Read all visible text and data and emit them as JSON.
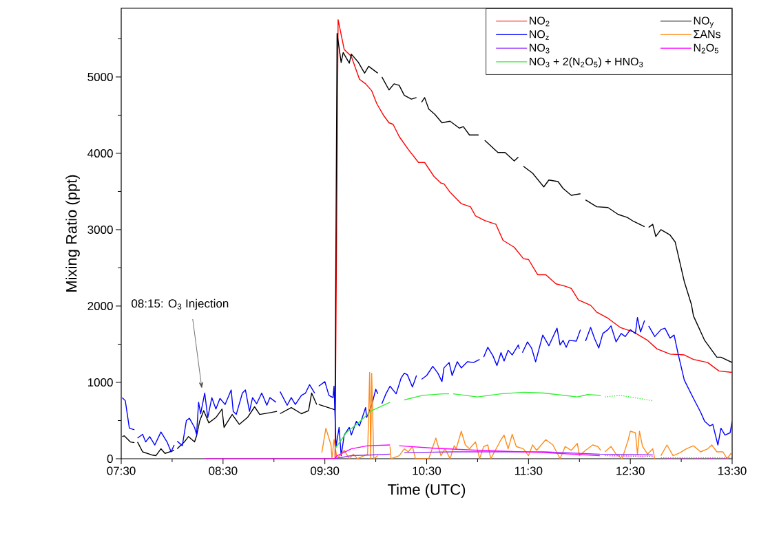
{
  "chart_data": {
    "type": "line",
    "xlabel": "Time (UTC)",
    "ylabel": "Mixing Ratio (ppt)",
    "xlim": [
      7.5,
      13.5
    ],
    "ylim": [
      0,
      5900
    ],
    "xticks": [
      {
        "value": 7.5,
        "label": "07:30"
      },
      {
        "value": 8,
        "label": null
      },
      {
        "value": 8.5,
        "label": "08:30"
      },
      {
        "value": 9,
        "label": null
      },
      {
        "value": 9.5,
        "label": "09:30"
      },
      {
        "value": 10,
        "label": null
      },
      {
        "value": 10.5,
        "label": "10:30"
      },
      {
        "value": 11,
        "label": null
      },
      {
        "value": 11.5,
        "label": "11:30"
      },
      {
        "value": 12,
        "label": null
      },
      {
        "value": 12.5,
        "label": "12:30"
      },
      {
        "value": 13,
        "label": null
      },
      {
        "value": 13.5,
        "label": "13:30"
      }
    ],
    "yticks": [
      0,
      {
        "value": 500,
        "label": null
      },
      1000,
      {
        "value": 1500,
        "label": null
      },
      2000,
      {
        "value": 2500,
        "label": null
      },
      3000,
      {
        "value": 3500,
        "label": null
      },
      4000,
      {
        "value": 4500,
        "label": null
      },
      5000,
      {
        "value": 5500,
        "label": null
      }
    ],
    "legend": "top right",
    "line_style": "solid",
    "annotations": [
      "08:15: O$_{3}$ Injection"
    ],
    "series": [
      {
        "name": "NO$_{2}$",
        "color": "#ff0000",
        "x": [
          9.6,
          9.63,
          9.69,
          9.76,
          9.84,
          9.9,
          9.96,
          10.01,
          10.08,
          10.13,
          10.17,
          10.23,
          10.32,
          10.42,
          10.48,
          10.57,
          10.64,
          10.67,
          10.73,
          10.84,
          10.93,
          10.98,
          11.07,
          11.18,
          11.25,
          11.36,
          11.45,
          11.5,
          11.59,
          11.67,
          11.77,
          11.86,
          11.92,
          11.99,
          12.11,
          12.17,
          12.28,
          12.4,
          12.53,
          12.67,
          12.76,
          12.89,
          13.03,
          13.12,
          13.26,
          13.37,
          13.5
        ],
        "values": [
          0,
          5750,
          5360,
          5270,
          4970,
          4910,
          4820,
          4650,
          4490,
          4400,
          4380,
          4220,
          4050,
          3880,
          3880,
          3700,
          3610,
          3600,
          3490,
          3340,
          3300,
          3180,
          3120,
          3070,
          2860,
          2770,
          2620,
          2610,
          2410,
          2410,
          2290,
          2260,
          2230,
          2080,
          2010,
          1920,
          1840,
          1720,
          1660,
          1550,
          1440,
          1370,
          1360,
          1300,
          1260,
          1150,
          1130
        ]
      },
      {
        "name": "NO$_{y}$",
        "color": "#000000",
        "x": [
          7.51,
          7.53,
          7.59,
          7.63,
          7.645,
          7.66,
          7.71,
          7.8,
          7.84,
          7.89,
          7.93,
          8.02,
          8.035,
          8.05,
          8.12,
          8.16,
          8.22,
          8.24,
          8.27,
          8.31,
          8.36,
          8.43,
          8.49,
          8.51,
          8.59,
          8.66,
          8.74,
          8.81,
          8.86,
          8.95,
          9.03,
          9.045,
          9.06,
          9.17,
          9.27,
          9.34,
          9.37,
          9.42,
          9.43,
          9.44,
          9.58,
          9.6,
          9.62,
          9.66,
          9.68,
          9.74,
          9.76,
          9.83,
          9.89,
          9.93,
          10.02,
          10.04,
          10.06,
          10.13,
          10.18,
          10.23,
          10.28,
          10.35,
          10.4,
          10.425,
          10.45,
          10.48,
          10.52,
          10.58,
          10.65,
          10.73,
          10.82,
          10.86,
          10.92,
          11.01,
          11.04,
          11.07,
          11.2,
          11.27,
          11.36,
          11.4,
          11.425,
          11.45,
          11.54,
          11.65,
          11.7,
          11.79,
          11.84,
          11.92,
          12.01,
          12.035,
          12.06,
          12.17,
          12.28,
          12.38,
          12.47,
          12.53,
          12.64,
          12.66,
          12.68,
          12.72,
          12.75,
          12.8,
          12.89,
          12.94,
          13.03,
          13.1,
          13.12,
          13.23,
          13.35,
          13.39,
          13.5
        ],
        "values": [
          290,
          300,
          220,
          210,
          null,
          220,
          90,
          50,
          40,
          130,
          70,
          110,
          null,
          130,
          220,
          290,
          220,
          300,
          490,
          630,
          470,
          540,
          650,
          410,
          580,
          450,
          540,
          680,
          580,
          600,
          620,
          null,
          590,
          670,
          590,
          630,
          860,
          710,
          null,
          710,
          650,
          640,
          5570,
          5190,
          5320,
          5180,
          5300,
          5190,
          5050,
          5140,
          5050,
          null,
          5000,
          4830,
          4910,
          4890,
          4760,
          4710,
          4730,
          null,
          4670,
          4730,
          4580,
          4510,
          4400,
          4420,
          4330,
          4350,
          4240,
          4240,
          null,
          4170,
          4010,
          4010,
          3900,
          3950,
          null,
          3830,
          3740,
          3560,
          3650,
          3630,
          3540,
          3450,
          3470,
          null,
          3390,
          3300,
          3290,
          3200,
          3160,
          3110,
          3040,
          null,
          3030,
          3070,
          2910,
          3000,
          2930,
          2840,
          2320,
          2020,
          1870,
          1550,
          1330,
          1330,
          1260
        ]
      },
      {
        "name": "NO$_{z}$",
        "color": "#0000ff",
        "x": [
          7.51,
          7.54,
          7.58,
          7.63,
          7.645,
          7.66,
          7.71,
          7.74,
          7.78,
          7.83,
          7.89,
          7.95,
          7.99,
          8.02,
          8.035,
          8.05,
          8.1,
          8.14,
          8.17,
          8.22,
          8.24,
          8.26,
          8.28,
          8.32,
          8.35,
          8.39,
          8.43,
          8.47,
          8.52,
          8.58,
          8.6,
          8.63,
          8.69,
          8.72,
          8.76,
          8.79,
          8.83,
          8.88,
          8.93,
          8.96,
          9.02,
          9.04,
          9.06,
          9.13,
          9.17,
          9.21,
          9.27,
          9.31,
          9.35,
          9.4,
          9.42,
          9.44,
          9.5,
          9.54,
          9.58,
          9.59,
          9.61,
          9.64,
          9.66,
          9.69,
          9.74,
          9.76,
          9.81,
          9.84,
          9.9,
          9.91,
          9.96,
          10,
          10.02,
          10.04,
          10.06,
          10.1,
          10.14,
          10.2,
          10.25,
          10.28,
          10.31,
          10.36,
          10.4,
          10.425,
          10.45,
          10.5,
          10.56,
          10.61,
          10.65,
          10.67,
          10.72,
          10.75,
          10.8,
          10.84,
          10.9,
          10.96,
          11.02,
          11.04,
          11.06,
          11.1,
          11.15,
          11.19,
          11.23,
          11.26,
          11.3,
          11.34,
          11.4,
          11.41,
          11.425,
          11.44,
          11.49,
          11.53,
          11.57,
          11.64,
          11.7,
          11.78,
          11.81,
          11.84,
          11.87,
          11.9,
          11.97,
          12.01,
          12.035,
          12.06,
          12.11,
          12.15,
          12.19,
          12.23,
          12.28,
          12.31,
          12.36,
          12.41,
          12.45,
          12.5,
          12.55,
          12.57,
          12.6,
          12.64,
          12.66,
          12.68,
          12.74,
          12.8,
          12.84,
          12.89,
          12.93,
          12.97,
          13.03,
          13.12,
          13.19,
          13.23,
          13.28,
          13.31,
          13.36,
          13.39,
          13.43,
          13.48,
          13.5
        ],
        "values": [
          800,
          760,
          400,
          380,
          null,
          270,
          320,
          220,
          290,
          180,
          350,
          220,
          90,
          180,
          null,
          230,
          170,
          500,
          530,
          410,
          320,
          740,
          590,
          860,
          540,
          800,
          650,
          790,
          710,
          900,
          620,
          580,
          860,
          900,
          620,
          800,
          720,
          860,
          700,
          800,
          740,
          null,
          880,
          700,
          800,
          710,
          830,
          860,
          970,
          860,
          null,
          950,
          1010,
          830,
          800,
          950,
          160,
          410,
          40,
          310,
          410,
          310,
          490,
          430,
          670,
          540,
          700,
          910,
          850,
          null,
          720,
          850,
          950,
          850,
          1060,
          1120,
          1100,
          940,
          1090,
          null,
          1040,
          1090,
          1210,
          1120,
          1010,
          1190,
          1260,
          1090,
          1270,
          1190,
          1270,
          1260,
          1300,
          null,
          1330,
          1460,
          1350,
          1220,
          1390,
          1280,
          1420,
          1360,
          1490,
          1440,
          null,
          1390,
          1530,
          1450,
          1270,
          1620,
          1480,
          1710,
          1490,
          1550,
          1460,
          1550,
          1540,
          1690,
          null,
          1540,
          1720,
          1570,
          1450,
          1640,
          1690,
          1740,
          1530,
          1640,
          1600,
          1690,
          1640,
          1850,
          1660,
          1810,
          null,
          1740,
          1600,
          1690,
          1710,
          1580,
          1620,
          1370,
          1030,
          790,
          610,
          490,
          430,
          450,
          180,
          400,
          310,
          340,
          490
        ]
      },
      {
        "name": "ΣANs",
        "color": "#ff8c1a",
        "x": [
          9.47,
          9.51,
          9.56,
          9.57,
          9.59,
          9.62,
          9.69,
          9.74,
          9.78,
          9.82,
          9.92,
          9.94,
          9.95,
          9.96,
          9.98,
          10.02,
          10.05,
          10.14,
          10.15,
          10.23,
          10.28,
          10.32,
          10.36,
          10.39,
          10.52,
          10.59,
          10.64,
          10.68,
          10.73,
          10.77,
          10.79,
          10.84,
          10.88,
          10.92,
          10.98,
          11.02,
          11.06,
          11.1,
          11.13,
          11.23,
          11.26,
          11.3,
          11.34,
          11.38,
          11.45,
          11.5,
          11.54,
          11.58,
          11.67,
          11.74,
          11.81,
          11.86,
          11.92,
          11.98,
          12.0,
          12.06,
          12.13,
          12.18,
          12.21,
          12.23,
          12.25,
          12.31,
          12.36,
          12.42,
          12.48,
          12.5,
          12.55,
          12.57,
          12.59,
          12.62,
          12.67,
          12.72,
          12.74,
          12.77,
          12.8,
          12.86,
          12.92,
          12.99,
          13.05,
          13.12,
          13.19,
          13.26,
          13.3,
          13.35,
          13.41,
          13.45,
          13.5
        ],
        "values": [
          80,
          400,
          180,
          0,
          250,
          0,
          110,
          0,
          60,
          0,
          60,
          1130,
          0,
          1120,
          0,
          40,
          null,
          160,
          0,
          40,
          130,
          90,
          160,
          0,
          0,
          270,
          40,
          130,
          0,
          170,
          130,
          360,
          180,
          130,
          220,
          0,
          160,
          180,
          0,
          250,
          310,
          130,
          320,
          160,
          130,
          40,
          180,
          110,
          250,
          180,
          0,
          160,
          110,
          200,
          40,
          110,
          180,
          160,
          110,
          null,
          90,
          160,
          60,
          0,
          250,
          360,
          340,
          60,
          360,
          160,
          60,
          130,
          0,
          null,
          40,
          180,
          40,
          80,
          130,
          170,
          90,
          130,
          180,
          90,
          90,
          0,
          90
        ]
      },
      {
        "name": "NO$_{3}$",
        "color": "#9933ff",
        "x": [
          9.6,
          9.76,
          9.96,
          10.14,
          10.2,
          10.28,
          10.77,
          11.65,
          12.2,
          12.72
        ],
        "values": [
          0,
          40,
          50,
          60,
          null,
          80,
          90,
          90,
          60,
          50
        ]
      },
      {
        "name": "N$_{2}$O$_{5}$",
        "color": "#ff00ff",
        "x": [
          8.32,
          9.6,
          9.62,
          9.76,
          9.92,
          10.14,
          10.2,
          10.23,
          10.55,
          11.0,
          11.65,
          12.2
        ],
        "values": [
          0,
          0,
          40,
          130,
          170,
          180,
          null,
          170,
          140,
          110,
          80,
          40
        ]
      },
      {
        "name": "NO$_{3}$ + 2(N$_{2}$O$_{5}$) + HNO$_{3}$",
        "color": "#33ee33",
        "x": [
          9.6,
          9.71,
          9.83,
          9.96,
          10.14,
          10.2,
          10.28,
          10.46,
          10.66,
          10.72,
          10.74,
          10.76,
          11.0,
          11.23,
          11.45,
          11.65,
          11.98,
          12.08,
          12.21
        ],
        "values": [
          130,
          340,
          470,
          630,
          740,
          null,
          770,
          830,
          850,
          850,
          null,
          850,
          810,
          850,
          870,
          860,
          810,
          840,
          830
        ]
      },
      {
        "color": "#ff00ff",
        "line_style": "dotted",
        "x": [
          12.25,
          12.72,
          12.77,
          12.8,
          13.5
        ],
        "values": [
          40,
          30,
          null,
          10,
          10
        ]
      },
      {
        "color": "#33ee33",
        "line_style": "dotted",
        "x": [
          12.25,
          12.4,
          12.72
        ],
        "values": [
          810,
          830,
          760
        ]
      }
    ]
  }
}
